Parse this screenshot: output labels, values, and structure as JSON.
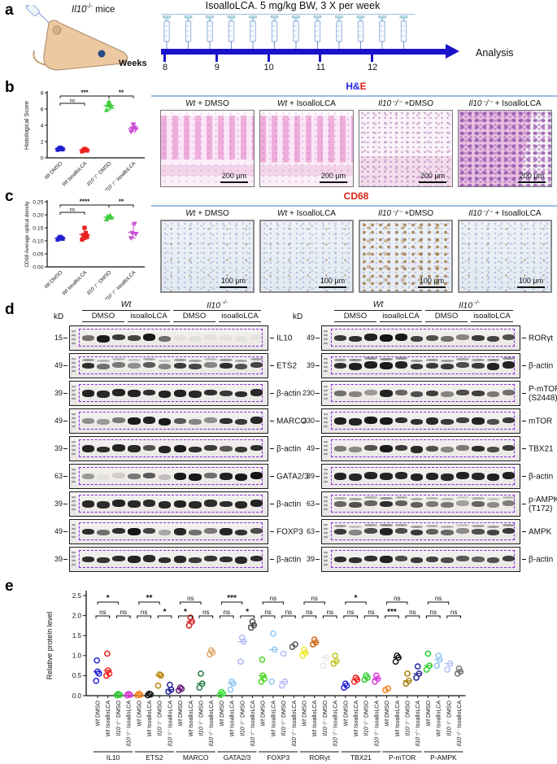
{
  "colors": {
    "timeline_blue": "#1a12c8",
    "separator_blue": "#9dbce8",
    "title_blue": "#2525e8",
    "title_red": "#e02418",
    "dashed_purple": "#8a2be2"
  },
  "panel_a": {
    "label": "a",
    "mice": {
      "gene": "Il10",
      "allele": "-/-",
      "rest": "mice"
    },
    "title": "IsoalloLCA.  5 mg/kg BW, 3 X per week",
    "weeks_label": "Weeks",
    "week_ticks": [
      "8",
      "9",
      "10",
      "11",
      "12"
    ],
    "analysis_label": "Analysis",
    "syringe_count": 12
  },
  "panel_b": {
    "label": "b",
    "images": {
      "title_main": "H&",
      "title_accent": "E",
      "scale": "200 μm",
      "conditions": [
        {
          "gen": "Wt",
          "suffix": "+ DMSO"
        },
        {
          "gen": "Wt",
          "suffix": "+ IsoalloLCA"
        },
        {
          "gen": "Il10⁻/⁻",
          "suffix": "+DMSO"
        },
        {
          "gen": "Il10⁻/⁻",
          "suffix": "+ IsoalloLCA"
        }
      ]
    }
  },
  "panel_c": {
    "label": "c",
    "images": {
      "title": "CD68",
      "scale": "100 μm",
      "conditions": [
        {
          "gen": "Wt",
          "suffix": "+ DMSO"
        },
        {
          "gen": "Wt",
          "suffix": "+ IsoalloLCA"
        },
        {
          "gen": "Il10⁻/⁻",
          "suffix": "+DMSO"
        },
        {
          "gen": "Il10⁻/⁻",
          "suffix": "+ IsoalloLCA"
        }
      ]
    }
  },
  "panel_d": {
    "label": "d",
    "kd_label": "kD",
    "genotypes": [
      {
        "text": "Wt",
        "sup": ""
      },
      {
        "text": "Il10",
        "sup": "-/-"
      }
    ],
    "treatments": [
      "DMSO",
      "isoalloLCA",
      "DMSO",
      "isoalloLCA"
    ],
    "columns": [
      {
        "rows": [
          {
            "marker": "15",
            "protein": "IL10",
            "bands": [
              0.55,
              0.95,
              0.8,
              0.75,
              0.95,
              0.55,
              0.04,
              0.04,
              0.04,
              0.04,
              0.04,
              0.04
            ]
          },
          {
            "marker": "49",
            "protein": "ETS2",
            "doublet": true,
            "bands": [
              0.85,
              0.55,
              0.5,
              0.4,
              0.65,
              0.45,
              0.8,
              0.75,
              0.45,
              0.85,
              0.7,
              0.75
            ]
          },
          {
            "marker": "39",
            "protein": "β-actin",
            "bands": [
              0.9,
              0.88,
              0.9,
              0.9,
              0.85,
              0.9,
              0.92,
              0.88,
              0.85,
              0.8,
              0.85,
              0.88
            ]
          },
          {
            "marker": "49",
            "protein": "MARCO",
            "bands": [
              0.4,
              0.35,
              0.5,
              0.95,
              0.9,
              0.95,
              0.65,
              0.45,
              0.4,
              0.85,
              0.8,
              0.88
            ]
          },
          {
            "marker": "39",
            "protein": "β-actin",
            "bands": [
              0.9,
              0.85,
              0.9,
              0.88,
              0.7,
              0.9,
              0.95,
              0.85,
              0.8,
              0.65,
              0.8,
              0.85
            ]
          },
          {
            "marker": "63",
            "protein": "GATA2/3",
            "bands": [
              0.35,
              0.06,
              0.12,
              0.5,
              0.65,
              0.18,
              0.95,
              0.95,
              0.55,
              0.92,
              0.95,
              0.98
            ]
          },
          {
            "marker": "39",
            "protein": "β-actin",
            "bands": [
              0.88,
              0.86,
              0.9,
              0.88,
              0.86,
              0.88,
              0.9,
              0.88,
              0.86,
              0.85,
              0.88,
              0.9
            ]
          },
          {
            "marker": "49",
            "protein": "FOXP3",
            "bands": [
              0.85,
              0.55,
              0.85,
              0.98,
              0.75,
              0.3,
              0.88,
              0.55,
              0.5,
              0.9,
              0.82,
              0.72
            ]
          },
          {
            "marker": "39",
            "protein": "β-actin",
            "bands": [
              0.85,
              0.82,
              0.85,
              0.9,
              0.88,
              0.85,
              0.88,
              0.8,
              0.82,
              0.85,
              0.88,
              0.85
            ]
          }
        ]
      },
      {
        "rows": [
          {
            "marker": "49",
            "protein": "RORγt",
            "bands": [
              0.8,
              0.85,
              0.9,
              0.98,
              0.95,
              0.75,
              0.7,
              0.55,
              0.45,
              0.8,
              0.75,
              0.7
            ]
          },
          {
            "marker": "39",
            "protein": "β-actin",
            "doublet": true,
            "bands": [
              0.85,
              0.92,
              0.92,
              0.95,
              0.9,
              0.82,
              0.8,
              0.8,
              0.72,
              0.8,
              0.9,
              0.9
            ]
          },
          {
            "marker": "230",
            "protein": "P-mTOR",
            "protein_sub": "(S2448)",
            "bands": [
              0.55,
              0.45,
              0.35,
              0.9,
              0.6,
              0.7,
              0.78,
              0.45,
              0.72,
              0.78,
              0.5,
              0.55
            ]
          },
          {
            "marker": "230",
            "protein": "mTOR",
            "bands": [
              0.92,
              0.9,
              0.95,
              0.95,
              0.85,
              0.85,
              0.88,
              0.8,
              0.78,
              0.9,
              0.72,
              0.8
            ]
          },
          {
            "marker": "49",
            "protein": "TBX21",
            "bands": [
              0.5,
              0.42,
              0.7,
              0.95,
              0.8,
              0.88,
              0.7,
              0.45,
              0.5,
              0.85,
              0.72,
              0.8
            ]
          },
          {
            "marker": "39",
            "protein": "β-actin",
            "bands": [
              0.9,
              0.88,
              0.9,
              0.9,
              0.88,
              0.9,
              0.9,
              0.88,
              0.9,
              0.88,
              0.9,
              0.92
            ]
          },
          {
            "marker": "63",
            "protein": "p-AMPK",
            "protein_sub": "(T172)",
            "doublet": true,
            "bands": [
              0.6,
              0.7,
              0.6,
              0.85,
              0.62,
              0.62,
              0.5,
              0.5,
              0.32,
              0.6,
              0.42,
              0.48
            ]
          },
          {
            "marker": "63",
            "protein": "AMPK",
            "doublet": true,
            "bands": [
              0.8,
              0.45,
              0.72,
              0.9,
              0.72,
              0.8,
              0.62,
              0.58,
              0.42,
              0.7,
              0.75,
              0.8
            ]
          },
          {
            "marker": "39",
            "protein": "β-actin",
            "bands": [
              0.85,
              0.85,
              0.85,
              0.9,
              0.72,
              0.8,
              0.76,
              0.72,
              0.66,
              0.62,
              0.7,
              0.76
            ]
          }
        ]
      }
    ]
  },
  "panel_e": {
    "label": "e"
  },
  "chart_data": [
    {
      "id": "histology_score",
      "type": "scatter",
      "ylabel": "Histological Score",
      "ylim": [
        0,
        8
      ],
      "yticks": [
        0,
        2,
        4,
        6,
        8
      ],
      "categories": [
        [
          "Wt",
          "DMSO"
        ],
        [
          "Wt",
          "IsoalloLCA"
        ],
        [
          "Il10⁻/⁻",
          "DMSO"
        ],
        [
          "Il10⁻/⁻",
          "IsoalloLCA"
        ]
      ],
      "colors": [
        "#1f1fd0",
        "#e8211d",
        "#3ecc3e",
        "#c94fd4"
      ],
      "markers": [
        "square",
        "square",
        "triangle-up",
        "triangle-down"
      ],
      "values": [
        [
          1.0,
          1.05,
          1.1,
          1.15,
          1.25
        ],
        [
          0.8,
          0.9,
          0.95,
          1.0,
          1.1
        ],
        [
          5.9,
          6.3,
          6.5,
          6.6,
          6.9
        ],
        [
          3.2,
          3.5,
          3.6,
          3.7,
          4.1
        ]
      ],
      "significance": [
        {
          "from": 0,
          "to": 1,
          "label": "ns",
          "level": 1
        },
        {
          "from": 0,
          "to": 2,
          "label": "***",
          "level": 2
        },
        {
          "from": 2,
          "to": 3,
          "label": "**",
          "level": 2
        }
      ]
    },
    {
      "id": "cd68_density",
      "type": "scatter",
      "ylabel": "CD68 Average optical density",
      "ylim": [
        0,
        0.25
      ],
      "yticks": [
        0.0,
        0.05,
        0.1,
        0.15,
        0.2,
        0.25
      ],
      "categories": [
        [
          "Wt",
          "DMSO"
        ],
        [
          "Wt",
          "IsoalloLCA"
        ],
        [
          "Il10⁻/⁻",
          "DMSO"
        ],
        [
          "Il10⁻/⁻",
          "IsoalloLCA"
        ]
      ],
      "colors": [
        "#1f1fd0",
        "#e8211d",
        "#3ecc3e",
        "#c94fd4"
      ],
      "markers": [
        "square",
        "square",
        "triangle-up",
        "triangle-down"
      ],
      "values": [
        [
          0.105,
          0.108,
          0.11,
          0.112,
          0.115
        ],
        [
          0.105,
          0.115,
          0.122,
          0.13,
          0.15
        ],
        [
          0.183,
          0.19,
          0.193,
          0.198
        ],
        [
          0.11,
          0.125,
          0.13,
          0.165
        ]
      ],
      "significance": [
        {
          "from": 0,
          "to": 1,
          "label": "ns",
          "level": 1
        },
        {
          "from": 0,
          "to": 2,
          "label": "****",
          "level": 2
        },
        {
          "from": 2,
          "to": 3,
          "label": "**",
          "level": 2
        }
      ]
    },
    {
      "id": "relative_protein",
      "type": "scatter",
      "ylabel": "Relative protein level",
      "ylim": [
        0,
        2.5
      ],
      "yticks": [
        0.0,
        0.5,
        1.0,
        1.5,
        2.0,
        2.5
      ],
      "condition_labels": [
        [
          "Wt",
          "DMSO"
        ],
        [
          "Wt",
          "IsoalloLCA"
        ],
        [
          "Il10⁻/⁻",
          "DMSO"
        ],
        [
          "Il10⁻/⁻",
          "IsoalloLCA"
        ]
      ],
      "groups": [
        {
          "name": "IL10",
          "colors": [
            "#2323d6",
            "#ee2421",
            "#2ecc2e",
            "#da3bda"
          ],
          "values": [
            [
              0.37,
              0.55,
              0.6,
              0.88
            ],
            [
              0.5,
              0.55,
              0.63,
              1.05
            ],
            [
              0.01,
              0.02,
              0.04
            ],
            [
              0.01,
              0.02,
              0.04
            ]
          ],
          "sig_top": "*",
          "sig_left": "ns",
          "sig_right": "ns"
        },
        {
          "name": "ETS2",
          "colors": [
            "#f5821f",
            "#151515",
            "#b8860b",
            "#1f1f99"
          ],
          "values": [
            [
              0.01,
              0.02,
              0.05
            ],
            [
              0.01,
              0.03,
              0.05
            ],
            [
              0.25,
              0.5,
              0.53
            ],
            [
              0.1,
              0.15,
              0.27
            ]
          ],
          "sig_top": "**",
          "sig_left": "ns",
          "sig_right": "*"
        },
        {
          "name": "MARCO",
          "colors": [
            "#6a1b7a",
            "#d01f1f",
            "#1e7a3c",
            "#dcab6b"
          ],
          "values": [
            [
              0.13,
              0.17,
              0.2
            ],
            [
              1.75,
              1.85,
              1.95
            ],
            [
              0.2,
              0.3,
              0.55
            ],
            [
              1.03,
              1.08,
              1.13
            ]
          ],
          "sig_top": "ns",
          "sig_left": "*",
          "sig_right": "ns"
        },
        {
          "name": "GATA2/3",
          "colors": [
            "#35e035",
            "#92c7f2",
            "#aeb5f5",
            "#4f4f4f"
          ],
          "values": [
            [
              0.02,
              0.05,
              0.09
            ],
            [
              0.15,
              0.3,
              0.35
            ],
            [
              0.85,
              1.35,
              1.45
            ],
            [
              1.7,
              1.76,
              1.85
            ]
          ],
          "sig_top": "***",
          "sig_left": "ns",
          "sig_right": "*"
        },
        {
          "name": "FOXP3",
          "colors": [
            "#4ad624",
            "#92c7f2",
            "#b6bcf7",
            "#5c5c5c"
          ],
          "values": [
            [
              0.35,
              0.42,
              0.5,
              0.9
            ],
            [
              0.35,
              1.15,
              1.55
            ],
            [
              0.25,
              0.35,
              1.05
            ],
            [
              1.22,
              1.28
            ]
          ],
          "sig_top": "ns",
          "sig_left": "ns",
          "sig_right": "ns"
        },
        {
          "name": "RORγt",
          "colors": [
            "#eee82e",
            "#d2691e",
            "#e9e9e9",
            "#c4c428"
          ],
          "values": [
            [
              1.0,
              1.07,
              1.15
            ],
            [
              1.28,
              1.33,
              1.4
            ],
            [
              0.75,
              0.95
            ],
            [
              0.8,
              0.86,
              1.0
            ]
          ],
          "sig_top": "ns",
          "sig_left": "ns",
          "sig_right": "ns"
        },
        {
          "name": "TBX21",
          "colors": [
            "#2525dd",
            "#ee2421",
            "#2ecc2e",
            "#da3bda"
          ],
          "values": [
            [
              0.2,
              0.25,
              0.3
            ],
            [
              0.35,
              0.4,
              0.45
            ],
            [
              0.4,
              0.45,
              0.5
            ],
            [
              0.35,
              0.42,
              0.5
            ]
          ],
          "sig_top": "*",
          "sig_left": "ns",
          "sig_right": "ns"
        },
        {
          "name": "P-mTOR",
          "colors": [
            "#f5821f",
            "#151515",
            "#a8800a",
            "#232399"
          ],
          "values": [
            [
              0.14,
              0.18
            ],
            [
              0.85,
              0.95,
              1.0
            ],
            [
              0.3,
              0.37,
              0.55
            ],
            [
              0.45,
              0.55,
              0.73
            ]
          ],
          "sig_top": "ns",
          "sig_left": "***",
          "sig_right": "ns"
        },
        {
          "name": "P-AMPK",
          "colors": [
            "#2ecc2e",
            "#92c7f2",
            "#b6bcf7",
            "#787878"
          ],
          "values": [
            [
              0.65,
              0.75,
              1.05
            ],
            [
              0.75,
              0.9,
              1.0
            ],
            [
              0.65,
              0.8
            ],
            [
              0.55,
              0.6,
              0.68
            ]
          ],
          "sig_top": "ns",
          "sig_left": "ns",
          "sig_right": "ns"
        }
      ]
    }
  ]
}
